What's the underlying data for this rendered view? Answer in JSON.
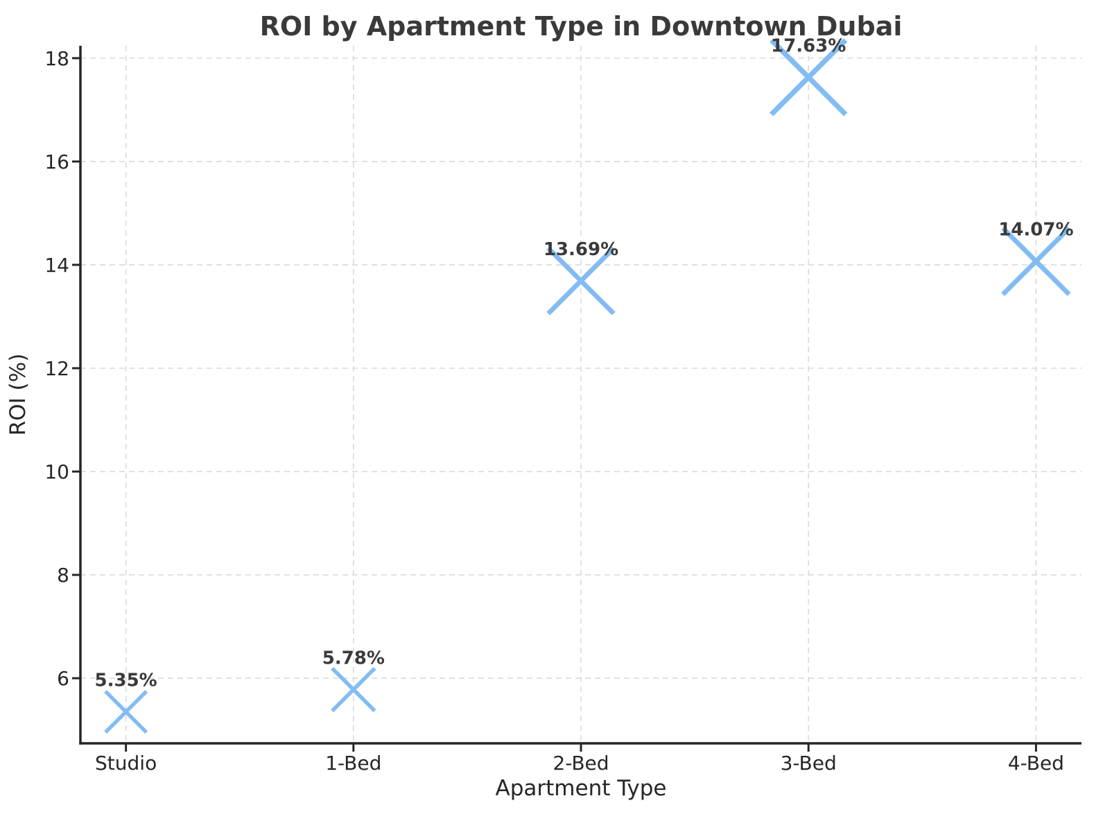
{
  "chart_data": {
    "type": "scatter",
    "marker": "x",
    "title": "ROI by Apartment Type in Downtown Dubai",
    "xlabel": "Apartment Type",
    "ylabel": "ROI (%)",
    "categories": [
      "Studio",
      "1-Bed",
      "2-Bed",
      "3-Bed",
      "4-Bed"
    ],
    "values": [
      5.35,
      5.78,
      13.69,
      17.63,
      14.07
    ],
    "point_labels": [
      "5.35%",
      "5.78%",
      "13.69%",
      "17.63%",
      "14.07%"
    ],
    "yticks": [
      6,
      8,
      10,
      12,
      14,
      16,
      18
    ],
    "ylim": [
      4.74,
      18.24
    ],
    "grid": true,
    "grid_style": "dashed",
    "legend_position": "none",
    "marker_size_scales_with_value": true,
    "colors": {
      "marker": "#82BCF2",
      "grid": "#dadada",
      "spine": "#262626",
      "tick_label": "#262626",
      "title": "#3a3a3a",
      "data_label": "#3a3a3a",
      "background": "#ffffff"
    }
  }
}
